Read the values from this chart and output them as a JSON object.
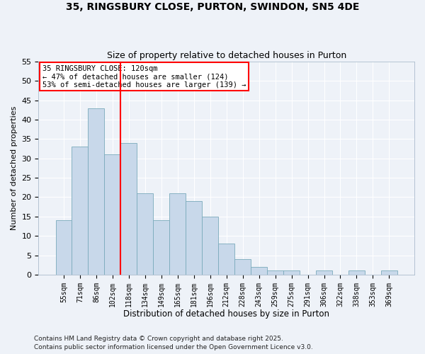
{
  "title": "35, RINGSBURY CLOSE, PURTON, SWINDON, SN5 4DE",
  "subtitle": "Size of property relative to detached houses in Purton",
  "xlabel": "Distribution of detached houses by size in Purton",
  "ylabel": "Number of detached properties",
  "footnote1": "Contains HM Land Registry data © Crown copyright and database right 2025.",
  "footnote2": "Contains public sector information licensed under the Open Government Licence v3.0.",
  "categories": [
    "55sqm",
    "71sqm",
    "86sqm",
    "102sqm",
    "118sqm",
    "134sqm",
    "149sqm",
    "165sqm",
    "181sqm",
    "196sqm",
    "212sqm",
    "228sqm",
    "243sqm",
    "259sqm",
    "275sqm",
    "291sqm",
    "306sqm",
    "322sqm",
    "338sqm",
    "353sqm",
    "369sqm"
  ],
  "values": [
    14,
    33,
    43,
    31,
    34,
    21,
    14,
    21,
    19,
    15,
    8,
    4,
    2,
    1,
    1,
    0,
    1,
    0,
    1,
    0,
    1
  ],
  "bar_color": "#c8d8ea",
  "bar_edge_color": "#7aaabb",
  "vline_index": 3.5,
  "annotation_title": "35 RINGSBURY CLOSE: 120sqm",
  "annotation_line1": "← 47% of detached houses are smaller (124)",
  "annotation_line2": "53% of semi-detached houses are larger (139) →",
  "vline_color": "red",
  "background_color": "#eef2f8",
  "ylim": [
    0,
    55
  ],
  "yticks": [
    0,
    5,
    10,
    15,
    20,
    25,
    30,
    35,
    40,
    45,
    50,
    55
  ]
}
